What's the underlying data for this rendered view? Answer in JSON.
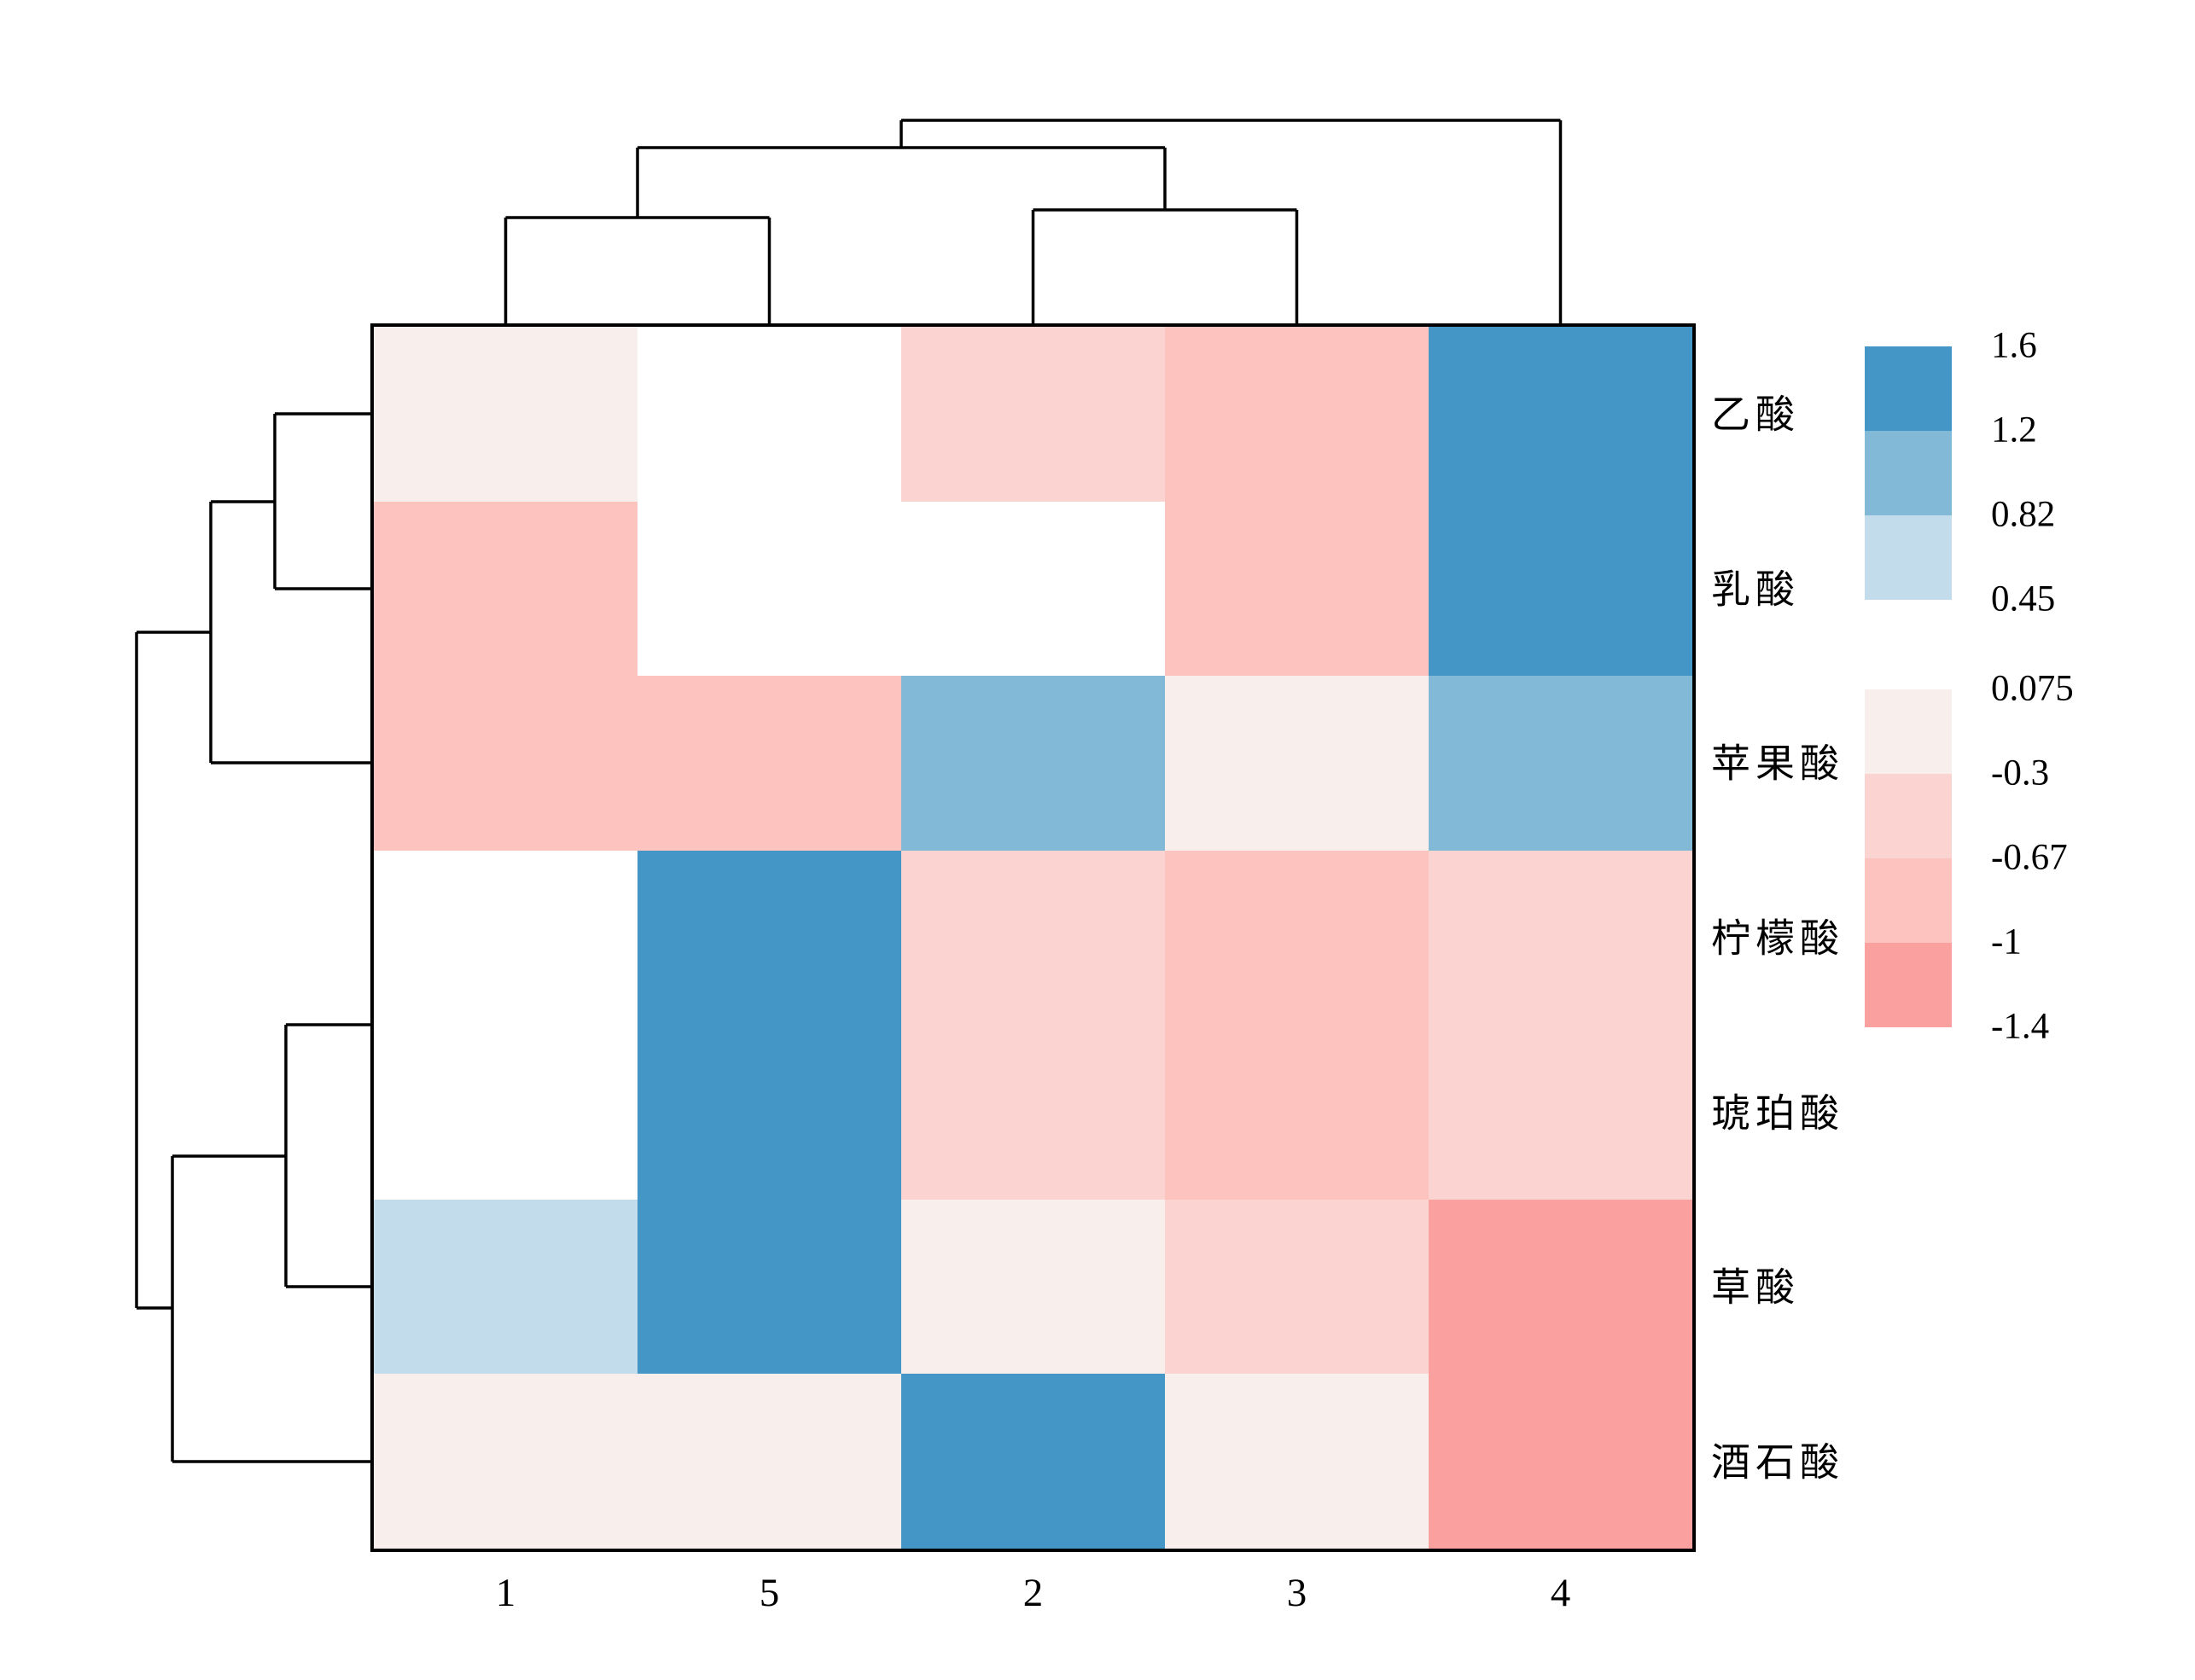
{
  "chart_data": {
    "type": "heatmap",
    "title": "",
    "xlabel": "",
    "ylabel": "",
    "columns": [
      "1",
      "5",
      "2",
      "3",
      "4"
    ],
    "rows": [
      "乙酸",
      "乳酸",
      "苹果酸",
      "柠檬酸",
      "琥珀酸",
      "草酸",
      "酒石酸"
    ],
    "color_bins": [
      {
        "id": "dblue",
        "range": "1.2 to 1.6",
        "color": "#4396c5",
        "approx_value": 1.4
      },
      {
        "id": "mblue",
        "range": "0.82 to 1.2",
        "color": "#82b9d7",
        "approx_value": 1.0
      },
      {
        "id": "lblue",
        "range": "0.45 to 0.82",
        "color": "#c2dcec",
        "approx_value": 0.63
      },
      {
        "id": "white",
        "range": "0.075 to 0.45",
        "color": "#ffffff",
        "approx_value": 0.26
      },
      {
        "id": "vlpink",
        "range": "-0.3 to 0.075",
        "color": "#f8eeec",
        "approx_value": -0.11
      },
      {
        "id": "lpink",
        "range": "-0.67 to -0.3",
        "color": "#fbd4d1",
        "approx_value": -0.49
      },
      {
        "id": "pink",
        "range": "-1 to -0.67",
        "color": "#fcc3bf",
        "approx_value": -0.84
      },
      {
        "id": "spink",
        "range": "-1.4 to -1",
        "color": "#faa1a0",
        "approx_value": -1.2
      }
    ],
    "cells": [
      [
        "vlpink",
        "white",
        "lpink",
        "pink",
        "dblue"
      ],
      [
        "pink",
        "white",
        "white",
        "pink",
        "dblue"
      ],
      [
        "pink",
        "pink",
        "mblue",
        "vlpink",
        "mblue"
      ],
      [
        "white",
        "dblue",
        "lpink",
        "pink",
        "lpink"
      ],
      [
        "white",
        "dblue",
        "lpink",
        "pink",
        "lpink"
      ],
      [
        "lblue",
        "dblue",
        "vlpink",
        "lpink",
        "spink"
      ],
      [
        "vlpink",
        "vlpink",
        "dblue",
        "vlpink",
        "spink"
      ]
    ],
    "values_approx": [
      [
        -0.11,
        0.26,
        -0.49,
        -0.84,
        1.4
      ],
      [
        -0.84,
        0.26,
        0.26,
        -0.84,
        1.4
      ],
      [
        -0.84,
        -0.84,
        1.0,
        -0.11,
        1.0
      ],
      [
        0.26,
        1.4,
        -0.49,
        -0.84,
        -0.49
      ],
      [
        0.26,
        1.4,
        -0.49,
        -0.84,
        -0.49
      ],
      [
        0.63,
        1.4,
        -0.11,
        -0.49,
        -1.2
      ],
      [
        -0.11,
        -0.11,
        1.4,
        -0.11,
        -1.2
      ]
    ],
    "legend": {
      "position": "right",
      "blue_tick_labels": [
        "1.6",
        "1.2",
        "0.82",
        "0.45"
      ],
      "pink_tick_labels": [
        "0.075",
        "-0.3",
        "-0.67",
        "-1",
        "-1.4"
      ],
      "blue_bin_ids": [
        "dblue",
        "mblue",
        "lblue"
      ],
      "pink_bin_ids": [
        "vlpink",
        "lpink",
        "pink",
        "spink"
      ]
    },
    "dendrograms": {
      "line_color": "#000000",
      "top": {
        "orientation": "columns",
        "segments": [
          [
            592.5,
            255,
            592.5,
            383
          ],
          [
            901.5,
            255,
            901.5,
            383
          ],
          [
            592.5,
            255,
            901.5,
            255
          ],
          [
            1210.5,
            246,
            1210.5,
            383
          ],
          [
            1519.5,
            246,
            1519.5,
            383
          ],
          [
            1210.5,
            246,
            1519.5,
            246
          ],
          [
            747,
            173,
            747,
            255
          ],
          [
            1365,
            173,
            1365,
            246
          ],
          [
            747,
            173,
            1365,
            173
          ],
          [
            1056,
            141,
            1056,
            173
          ],
          [
            1828.5,
            141,
            1828.5,
            383
          ],
          [
            1056,
            141,
            1828.5,
            141
          ]
        ]
      },
      "left": {
        "orientation": "rows",
        "segments": [
          [
            438,
            485,
            322,
            485
          ],
          [
            438,
            690,
            322,
            690
          ],
          [
            322,
            485,
            322,
            690
          ],
          [
            322,
            588,
            247,
            588
          ],
          [
            438,
            894,
            247,
            894
          ],
          [
            247,
            588,
            247,
            894
          ],
          [
            247,
            741,
            160,
            741
          ],
          [
            438,
            1201,
            335,
            1201
          ],
          [
            438,
            1508,
            335,
            1508
          ],
          [
            335,
            1201,
            335,
            1508
          ],
          [
            335,
            1355,
            202,
            1355
          ],
          [
            438,
            1713,
            202,
            1713
          ],
          [
            202,
            1355,
            202,
            1713
          ],
          [
            202,
            1533,
            160,
            1533
          ],
          [
            160,
            741,
            160,
            1533
          ]
        ]
      }
    }
  }
}
